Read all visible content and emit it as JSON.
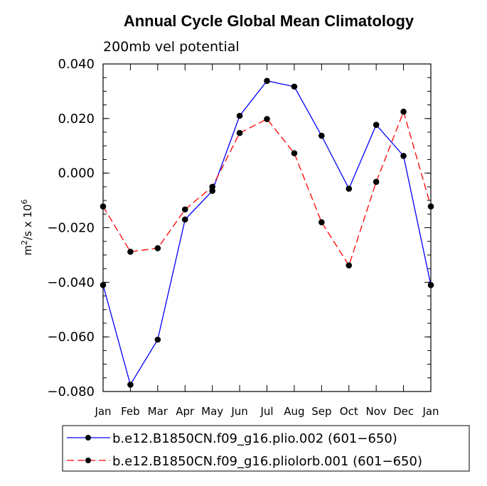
{
  "chart_data": {
    "type": "line",
    "title": "Annual Cycle Global Mean Climatology",
    "subtitle": "200mb vel potential",
    "xlabel": "",
    "ylabel_base": "m",
    "ylabel_sup1": "2",
    "ylabel_mid": "/s x 10",
    "ylabel_sup2": "6",
    "categories": [
      "Jan",
      "Feb",
      "Mar",
      "Apr",
      "May",
      "Jun",
      "Jul",
      "Aug",
      "Sep",
      "Oct",
      "Nov",
      "Dec",
      "Jan"
    ],
    "ylim": [
      -0.08,
      0.04
    ],
    "yticks": [
      -0.08,
      -0.06,
      -0.04,
      -0.02,
      0.0,
      0.02,
      0.04
    ],
    "ytick_labels": [
      "−0.080",
      "−0.060",
      "−0.040",
      "−0.020",
      "0.000",
      "0.020",
      "0.040"
    ],
    "series": [
      {
        "name": "b.e12.B1850CN.f09_g16.plio.002 (601−650)",
        "color": "#0000ff",
        "dash": "solid",
        "values": [
          -0.041,
          -0.0775,
          -0.061,
          -0.017,
          -0.0065,
          0.021,
          0.0338,
          0.0317,
          0.0137,
          -0.0057,
          0.0177,
          0.0063,
          -0.041
        ]
      },
      {
        "name": "b.e12.B1850CN.f09_g16.pliolorb.001 (601−650)",
        "color": "#ff0000",
        "dash": "dashed",
        "values": [
          -0.0122,
          -0.0288,
          -0.0275,
          -0.0133,
          -0.005,
          0.0147,
          0.0198,
          0.0073,
          -0.018,
          -0.0338,
          -0.0032,
          0.0225,
          -0.0122
        ]
      }
    ],
    "legend_position": "bottom"
  }
}
